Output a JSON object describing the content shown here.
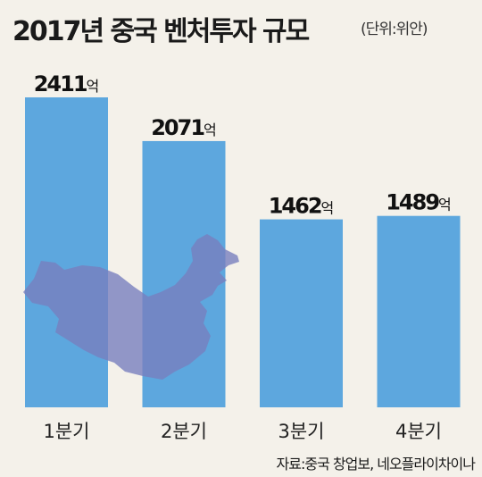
{
  "title": "2017년 중국 벤처투자 규모",
  "unit": "(단위:위안)",
  "source": "자료:중국 창업보, 네오플라이차이나",
  "colors": {
    "bar": "#5da7de",
    "map": "#7880be",
    "background": "#f4f1ea"
  },
  "chart_data": {
    "type": "bar",
    "categories": [
      "1분기",
      "2분기",
      "3분기",
      "4분기"
    ],
    "values": [
      2411,
      2071,
      1462,
      1489
    ],
    "value_labels": [
      "2411",
      "2071",
      "1462",
      "1489"
    ],
    "value_unit": "억",
    "ylim": [
      0,
      2411
    ],
    "grid": false,
    "legend": "none"
  }
}
